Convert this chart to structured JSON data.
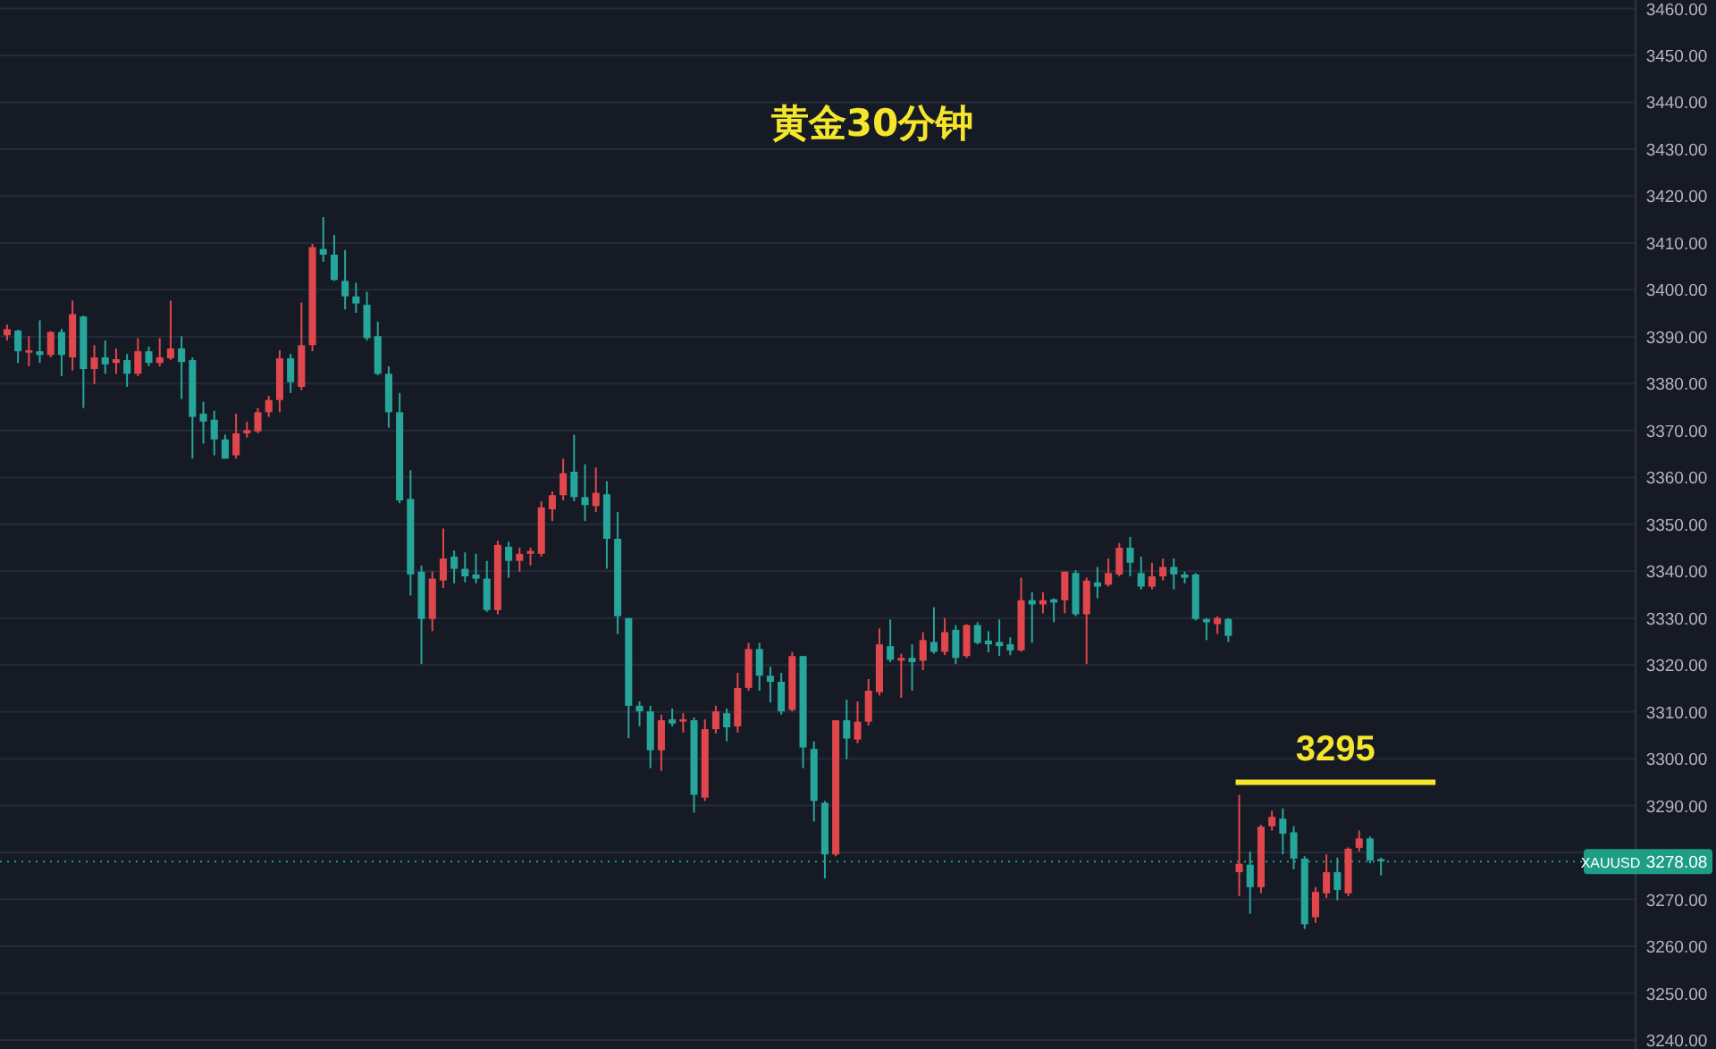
{
  "chart_data": {
    "type": "candlestick",
    "title": "黄金30分钟",
    "categories": [
      null,
      null,
      null,
      null,
      null,
      null,
      null,
      null,
      null,
      null,
      null,
      null,
      null,
      null,
      null,
      null,
      null,
      null,
      null,
      null,
      null,
      null,
      null,
      null,
      null,
      null,
      null,
      null,
      null,
      null,
      null,
      null,
      null,
      null,
      null,
      null,
      null,
      null,
      null,
      null,
      null,
      null,
      null,
      null,
      null,
      null,
      null,
      null,
      null,
      null,
      null,
      null,
      null,
      null,
      null,
      null,
      null,
      null,
      null,
      null,
      null,
      null,
      null,
      null,
      null,
      null,
      null,
      null,
      null,
      null,
      null,
      null,
      null,
      null,
      null,
      null,
      null,
      null,
      null,
      null,
      null,
      null,
      null,
      null,
      null,
      null,
      null,
      null,
      null,
      null,
      null,
      null,
      null,
      null,
      null,
      null,
      null,
      null,
      null,
      null,
      null,
      null,
      null,
      null,
      null,
      null,
      null,
      null,
      null,
      null,
      null,
      null,
      null,
      null,
      null,
      null,
      null,
      null,
      null,
      null,
      null,
      null,
      null,
      null,
      null,
      null,
      null,
      null,
      null,
      null,
      null,
      null,
      null,
      null,
      null,
      null,
      null,
      null,
      null,
      null,
      null,
      null,
      null,
      null,
      null,
      null,
      null,
      null,
      null,
      null
    ],
    "ohlc": [
      [
        3390.3,
        3392.6,
        3389.2,
        3391.6
      ],
      [
        3391.3,
        3391.5,
        3384.4,
        3386.9
      ],
      [
        3386.6,
        3390.1,
        3383.7,
        3387.1
      ],
      [
        3386.9,
        3393.5,
        3384.4,
        3386.1
      ],
      [
        3386.1,
        3391.2,
        3385.6,
        3391.0
      ],
      [
        3391.0,
        3391.7,
        3381.6,
        3386.1
      ],
      [
        3385.6,
        3397.7,
        3382.8,
        3394.8
      ],
      [
        3394.3,
        3394.5,
        3374.8,
        3383.1
      ],
      [
        3383.1,
        3388.2,
        3379.9,
        3385.6
      ],
      [
        3385.6,
        3389.2,
        3382.1,
        3384.1
      ],
      [
        3384.4,
        3387.5,
        3382.1,
        3385.2
      ],
      [
        3385.0,
        3386.3,
        3379.3,
        3382.1
      ],
      [
        3382.1,
        3389.7,
        3381.6,
        3386.9
      ],
      [
        3386.9,
        3387.9,
        3383.7,
        3384.4
      ],
      [
        3384.4,
        3389.7,
        3383.7,
        3385.6
      ],
      [
        3385.4,
        3397.7,
        3385.0,
        3387.5
      ],
      [
        3387.5,
        3390.1,
        3376.7,
        3384.6
      ],
      [
        3385.0,
        3385.6,
        3364.0,
        3372.9
      ],
      [
        3373.6,
        3376.1,
        3367.2,
        3371.9
      ],
      [
        3372.3,
        3374.2,
        3364.7,
        3368.1
      ],
      [
        3368.1,
        3369.1,
        3364.0,
        3364.0
      ],
      [
        3364.7,
        3373.6,
        3364.0,
        3369.4
      ],
      [
        3369.4,
        3371.9,
        3368.5,
        3370.1
      ],
      [
        3369.8,
        3374.8,
        3369.4,
        3373.9
      ],
      [
        3373.9,
        3377.4,
        3372.9,
        3376.5
      ],
      [
        3376.5,
        3387.1,
        3373.9,
        3385.4
      ],
      [
        3385.4,
        3386.3,
        3378.0,
        3380.3
      ],
      [
        3379.3,
        3397.3,
        3378.6,
        3388.2
      ],
      [
        3388.2,
        3409.8,
        3386.9,
        3409.1
      ],
      [
        3408.7,
        3415.5,
        3406.0,
        3407.5
      ],
      [
        3407.5,
        3411.7,
        3401.9,
        3402.1
      ],
      [
        3401.9,
        3408.5,
        3395.8,
        3398.6
      ],
      [
        3398.6,
        3401.5,
        3395.1,
        3397.1
      ],
      [
        3396.8,
        3399.6,
        3389.2,
        3389.7
      ],
      [
        3390.1,
        3393.2,
        3381.8,
        3382.1
      ],
      [
        3382.1,
        3383.7,
        3370.6,
        3373.9
      ],
      [
        3373.9,
        3378.0,
        3354.5,
        3355.1
      ],
      [
        3355.4,
        3361.5,
        3334.8,
        3339.3
      ],
      [
        3339.9,
        3341.2,
        3320.2,
        3329.8
      ],
      [
        3329.8,
        3339.9,
        3327.2,
        3338.4
      ],
      [
        3338.0,
        3349.1,
        3336.4,
        3342.7
      ],
      [
        3343.1,
        3344.4,
        3337.4,
        3340.5
      ],
      [
        3340.5,
        3344.0,
        3337.6,
        3338.9
      ],
      [
        3339.3,
        3343.7,
        3337.4,
        3338.4
      ],
      [
        3338.4,
        3342.2,
        3331.3,
        3331.7
      ],
      [
        3331.7,
        3346.5,
        3330.8,
        3345.6
      ],
      [
        3345.2,
        3346.3,
        3338.6,
        3342.2
      ],
      [
        3342.2,
        3345.0,
        3339.9,
        3343.7
      ],
      [
        3343.7,
        3345.0,
        3341.2,
        3344.3
      ],
      [
        3343.7,
        3354.9,
        3343.1,
        3353.6
      ],
      [
        3353.2,
        3357.0,
        3350.7,
        3356.2
      ],
      [
        3356.2,
        3364.0,
        3355.1,
        3360.9
      ],
      [
        3361.2,
        3369.1,
        3354.9,
        3355.8
      ],
      [
        3355.8,
        3362.8,
        3350.7,
        3354.1
      ],
      [
        3353.9,
        3362.1,
        3352.6,
        3356.7
      ],
      [
        3356.4,
        3359.2,
        3340.5,
        3346.9
      ],
      [
        3346.9,
        3352.6,
        3326.6,
        3330.4
      ],
      [
        3330.0,
        3330.0,
        3304.4,
        3311.3
      ],
      [
        3311.3,
        3312.2,
        3306.9,
        3310.1
      ],
      [
        3310.1,
        3311.3,
        3298.0,
        3301.8
      ],
      [
        3301.8,
        3309.4,
        3297.4,
        3308.2
      ],
      [
        3308.4,
        3310.7,
        3306.9,
        3307.5
      ],
      [
        3307.9,
        3309.7,
        3305.6,
        3308.4
      ],
      [
        3308.2,
        3308.8,
        3288.5,
        3292.3
      ],
      [
        3291.7,
        3308.4,
        3291.0,
        3306.3
      ],
      [
        3306.3,
        3311.3,
        3305.4,
        3310.1
      ],
      [
        3309.7,
        3310.7,
        3303.7,
        3306.7
      ],
      [
        3306.9,
        3318.3,
        3305.6,
        3315.1
      ],
      [
        3315.1,
        3324.7,
        3314.5,
        3323.4
      ],
      [
        3323.4,
        3324.7,
        3314.5,
        3317.7
      ],
      [
        3317.7,
        3319.6,
        3312.0,
        3316.4
      ],
      [
        3316.4,
        3318.3,
        3309.4,
        3310.1
      ],
      [
        3310.4,
        3322.8,
        3310.1,
        3321.9
      ],
      [
        3321.9,
        3321.9,
        3298.0,
        3302.4
      ],
      [
        3302.1,
        3303.7,
        3286.6,
        3291.0
      ],
      [
        3290.6,
        3291.0,
        3274.5,
        3279.6
      ],
      [
        3279.6,
        3308.2,
        3279.2,
        3308.2
      ],
      [
        3308.2,
        3312.6,
        3299.9,
        3304.3
      ],
      [
        3304.1,
        3312.2,
        3303.3,
        3307.9
      ],
      [
        3307.9,
        3317.0,
        3307.1,
        3314.5
      ],
      [
        3314.2,
        3327.8,
        3313.5,
        3324.4
      ],
      [
        3324.0,
        3329.7,
        3320.6,
        3321.1
      ],
      [
        3320.9,
        3322.4,
        3313.0,
        3321.5
      ],
      [
        3321.5,
        3324.4,
        3314.5,
        3320.6
      ],
      [
        3320.9,
        3327.0,
        3318.9,
        3325.3
      ],
      [
        3324.9,
        3332.3,
        3322.4,
        3322.8
      ],
      [
        3322.8,
        3330.0,
        3322.1,
        3327.0
      ],
      [
        3327.5,
        3328.5,
        3320.2,
        3321.5
      ],
      [
        3321.9,
        3328.7,
        3321.5,
        3328.5
      ],
      [
        3328.5,
        3329.1,
        3324.4,
        3324.7
      ],
      [
        3325.2,
        3327.2,
        3322.7,
        3324.4
      ],
      [
        3324.9,
        3329.7,
        3321.9,
        3324.0
      ],
      [
        3324.4,
        3325.9,
        3322.1,
        3323.1
      ],
      [
        3323.1,
        3338.6,
        3322.8,
        3333.8
      ],
      [
        3333.8,
        3335.5,
        3324.7,
        3332.9
      ],
      [
        3332.9,
        3335.5,
        3331.0,
        3333.8
      ],
      [
        3334.0,
        3334.2,
        3329.1,
        3333.3
      ],
      [
        3333.8,
        3339.9,
        3331.0,
        3339.9
      ],
      [
        3339.6,
        3340.2,
        3330.4,
        3330.8
      ],
      [
        3330.8,
        3338.6,
        3320.2,
        3338.0
      ],
      [
        3337.6,
        3340.9,
        3334.2,
        3336.7
      ],
      [
        3337.1,
        3342.7,
        3336.7,
        3339.6
      ],
      [
        3339.3,
        3346.0,
        3338.9,
        3345.0
      ],
      [
        3345.0,
        3347.3,
        3338.9,
        3341.8
      ],
      [
        3339.6,
        3343.1,
        3336.1,
        3336.7
      ],
      [
        3336.7,
        3341.8,
        3336.1,
        3338.9
      ],
      [
        3338.9,
        3342.7,
        3338.0,
        3340.9
      ],
      [
        3340.9,
        3342.7,
        3336.1,
        3339.3
      ],
      [
        3339.3,
        3339.9,
        3337.4,
        3338.6
      ],
      [
        3339.3,
        3339.6,
        3329.5,
        3329.8
      ],
      [
        3329.8,
        3330.0,
        3325.3,
        3329.1
      ],
      [
        3328.7,
        3330.4,
        3326.6,
        3330.0
      ],
      [
        3329.8,
        3330.0,
        3324.9,
        3326.2
      ],
      [
        3275.8,
        3292.3,
        3270.7,
        3277.6
      ],
      [
        3277.4,
        3280.2,
        3266.9,
        3272.6
      ],
      [
        3272.6,
        3285.9,
        3271.3,
        3285.5
      ],
      [
        3285.6,
        3288.9,
        3284.7,
        3287.6
      ],
      [
        3287.2,
        3289.4,
        3279.6,
        3284.0
      ],
      [
        3284.3,
        3285.6,
        3276.4,
        3278.7
      ],
      [
        3278.7,
        3279.2,
        3263.7,
        3264.7
      ],
      [
        3266.2,
        3272.6,
        3265.0,
        3271.6
      ],
      [
        3271.3,
        3279.6,
        3270.3,
        3275.8
      ],
      [
        3275.8,
        3278.9,
        3269.8,
        3272.0
      ],
      [
        3271.3,
        3281.1,
        3270.7,
        3280.8
      ],
      [
        3281.0,
        3284.7,
        3280.2,
        3283.0
      ],
      [
        3283.0,
        3283.4,
        3277.7,
        3278.3
      ],
      [
        3278.6,
        3278.9,
        3275.1,
        3278.1
      ],
      null,
      null,
      null,
      null,
      null,
      null,
      null,
      null,
      null,
      null,
      null,
      null,
      null,
      null,
      null,
      null,
      null,
      null,
      null,
      null,
      null,
      null,
      null
    ],
    "ylim": [
      3240,
      3460
    ],
    "yticks": [
      {
        "value": 3240,
        "label": "3240.00"
      },
      {
        "value": 3250,
        "label": "3250.00"
      },
      {
        "value": 3260,
        "label": "3260.00"
      },
      {
        "value": 3270,
        "label": "3270.00"
      },
      {
        "value": 3280,
        "label": null
      },
      {
        "value": 3290,
        "label": "3290.00"
      },
      {
        "value": 3300,
        "label": "3300.00"
      },
      {
        "value": 3310,
        "label": "3310.00"
      },
      {
        "value": 3320,
        "label": "3320.00"
      },
      {
        "value": 3330,
        "label": "3330.00"
      },
      {
        "value": 3340,
        "label": "3340.00"
      },
      {
        "value": 3350,
        "label": "3350.00"
      },
      {
        "value": 3360,
        "label": "3360.00"
      },
      {
        "value": 3370,
        "label": "3370.00"
      },
      {
        "value": 3380,
        "label": "3380.00"
      },
      {
        "value": 3390,
        "label": "3390.00"
      },
      {
        "value": 3400,
        "label": "3400.00"
      },
      {
        "value": 3410,
        "label": "3410.00"
      },
      {
        "value": 3420,
        "label": "3420.00"
      },
      {
        "value": 3430,
        "label": "3430.00"
      },
      {
        "value": 3440,
        "label": "3440.00"
      },
      {
        "value": 3450,
        "label": "3450.00"
      },
      {
        "value": 3460,
        "label": "3460.00"
      }
    ],
    "ref_lines": [
      {
        "axis": "y",
        "value": 3295,
        "label": "3295",
        "color": "#f5e62b",
        "line_style": "solid"
      },
      {
        "axis": "y",
        "value": 3278.08,
        "label": "XAUUSD",
        "color": "#1e9e86",
        "line_style": "dotted"
      }
    ],
    "annotations": [
      "3278.08"
    ],
    "grid": "y",
    "tick_labels": "y"
  }
}
